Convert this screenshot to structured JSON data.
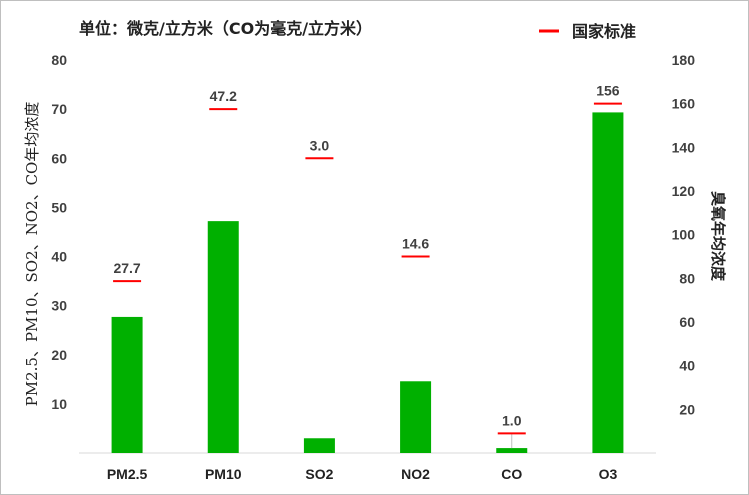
{
  "chart_data": {
    "type": "bar",
    "title": "单位：微克/立方米（CO为毫克/立方米）",
    "categories": [
      "PM2.5",
      "PM10",
      "SO2",
      "NO2",
      "CO",
      "O3"
    ],
    "series": [
      {
        "values": [
          27.7,
          47.2,
          3.0,
          14.6,
          1.0,
          156
        ],
        "axis": [
          "left",
          "left",
          "left",
          "left",
          "left",
          "right"
        ],
        "labels": [
          "27.7",
          "47.2",
          "3.0",
          "14.6",
          "1.0",
          "156"
        ],
        "color": "#00b000"
      },
      {
        "name": "国家标准",
        "values": [
          35,
          70,
          60,
          40,
          4,
          160
        ],
        "axis": [
          "left",
          "left",
          "left",
          "left",
          "left",
          "right"
        ],
        "color": "#ff0000"
      }
    ],
    "ylabel": "PM2.5、PM10、SO2、NO2、CO年均浓度",
    "y2label": "臭氧年均浓度",
    "ylim": [
      0,
      80
    ],
    "y2lim": [
      0,
      180
    ],
    "yticks": [
      10,
      20,
      30,
      40,
      50,
      60,
      70,
      80
    ],
    "y2ticks": [
      20,
      40,
      60,
      80,
      100,
      120,
      140,
      160,
      180
    ],
    "legend": "top-right",
    "grid": false
  }
}
